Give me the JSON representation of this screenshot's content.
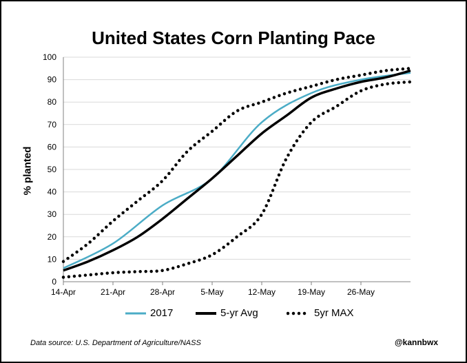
{
  "window": {
    "title": "United States Corn Planting Pace"
  },
  "footer": {
    "source": "Data source: U.S. Department of Agriculture/NASS",
    "handle": "@kannbwx"
  },
  "colors": {
    "s2017": "#4bacc6",
    "avg": "#000000",
    "max": "#000000",
    "grid": "#d9d9d9",
    "axis": "#808080"
  },
  "chart_data": {
    "type": "line",
    "title": "United States Corn Planting Pace",
    "xlabel": "",
    "ylabel": "% planted",
    "ylim": [
      0,
      100
    ],
    "yticks": [
      0,
      10,
      20,
      30,
      40,
      50,
      60,
      70,
      80,
      90,
      100
    ],
    "xlim": [
      0,
      7
    ],
    "xticks": [
      {
        "x": 0,
        "label": "14-Apr"
      },
      {
        "x": 1,
        "label": "21-Apr"
      },
      {
        "x": 2,
        "label": "28-Apr"
      },
      {
        "x": 3,
        "label": "5-May"
      },
      {
        "x": 4,
        "label": "12-May"
      },
      {
        "x": 5,
        "label": "19-May"
      },
      {
        "x": 6,
        "label": "26-May"
      }
    ],
    "grid": true,
    "legend_position": "bottom",
    "series": [
      {
        "name": "2017",
        "style": "solid",
        "x": [
          0,
          1,
          2,
          3,
          4,
          5,
          6,
          7
        ],
        "y": [
          6,
          17,
          34,
          46,
          71,
          84,
          90,
          93
        ]
      },
      {
        "name": "5-yr Avg",
        "style": "solid-bold",
        "x": [
          0,
          0.5,
          1,
          1.5,
          2,
          2.5,
          3,
          3.5,
          4,
          4.5,
          5,
          5.5,
          6,
          6.5,
          7
        ],
        "y": [
          5,
          9,
          14,
          20,
          28,
          37,
          46,
          56,
          66,
          74,
          82,
          86,
          89,
          91,
          94
        ]
      },
      {
        "name": "5yr MAX",
        "style": "dotted",
        "x": [
          0,
          0.5,
          1,
          1.5,
          2,
          2.5,
          3,
          3.5,
          4,
          4.5,
          5,
          5.5,
          6,
          6.5,
          7
        ],
        "y": [
          9,
          17,
          27,
          36,
          45,
          58,
          67,
          76,
          80,
          84,
          87,
          90,
          92,
          94,
          95
        ]
      },
      {
        "name": "5yr MIN",
        "style": "dotted",
        "legend": false,
        "x": [
          0,
          0.5,
          1,
          1.5,
          2,
          2.5,
          3,
          3.5,
          4,
          4.5,
          5,
          5.5,
          6,
          6.5,
          7
        ],
        "y": [
          2,
          3,
          4,
          4.5,
          5,
          8,
          12,
          20,
          30,
          55,
          71,
          78,
          85,
          88,
          89
        ]
      }
    ]
  }
}
